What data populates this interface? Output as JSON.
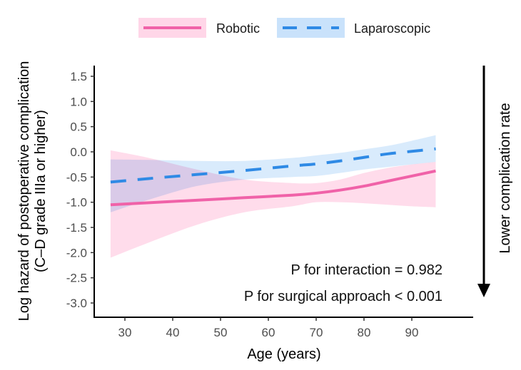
{
  "chart_data": {
    "type": "line",
    "title": "",
    "xlabel": "Age (years)",
    "ylabel_line1": "Log hazard of postoperative complication",
    "ylabel_line2": "(C–D grade IIIa or higher)",
    "xlim": [
      23.5,
      97
    ],
    "ylim": [
      -3.3,
      1.75
    ],
    "x_ticks": [
      30,
      40,
      50,
      60,
      70,
      80,
      90
    ],
    "x_tick_labels": [
      "30",
      "40",
      "50",
      "60",
      "70",
      "80",
      "90"
    ],
    "y_ticks": [
      1.5,
      1.0,
      0.5,
      0.0,
      -0.5,
      -1.0,
      -1.5,
      -2.0,
      -2.5,
      -3.0
    ],
    "y_tick_labels": [
      "1.5",
      "1.0",
      "0.5",
      "0.0",
      "-0.5",
      "-1.0",
      "-1.5",
      "-2.0",
      "-2.5",
      "-3.0"
    ],
    "grid": false,
    "legend_position": "top",
    "series": [
      {
        "name": "Robotic",
        "color": "#f062a8",
        "band_color": "#ffd6e8",
        "linestyle": "solid",
        "x": [
          27,
          35,
          45,
          55,
          65,
          70,
          75,
          80,
          85,
          90,
          95
        ],
        "y": [
          -1.05,
          -1.01,
          -0.96,
          -0.91,
          -0.86,
          -0.82,
          -0.76,
          -0.68,
          -0.58,
          -0.48,
          -0.38
        ],
        "lower": [
          -2.1,
          -1.8,
          -1.45,
          -1.2,
          -1.08,
          -1.0,
          -1.0,
          -1.02,
          -1.05,
          -1.08,
          -1.1
        ],
        "upper": [
          0.03,
          -0.12,
          -0.35,
          -0.55,
          -0.62,
          -0.62,
          -0.55,
          -0.42,
          -0.32,
          -0.25,
          -0.2
        ]
      },
      {
        "name": "Laparoscopic",
        "color": "#2f8ae5",
        "band_color": "#c9e2fb",
        "linestyle": "dashed",
        "x": [
          27,
          35,
          45,
          55,
          65,
          70,
          75,
          80,
          85,
          90,
          95
        ],
        "y": [
          -0.6,
          -0.53,
          -0.45,
          -0.37,
          -0.28,
          -0.24,
          -0.18,
          -0.11,
          -0.04,
          0.01,
          0.06
        ],
        "lower": [
          -1.2,
          -0.95,
          -0.68,
          -0.55,
          -0.5,
          -0.48,
          -0.42,
          -0.35,
          -0.3,
          -0.25,
          -0.2
        ],
        "upper": [
          -0.15,
          -0.16,
          -0.18,
          -0.18,
          -0.12,
          -0.07,
          -0.02,
          0.05,
          0.12,
          0.22,
          0.33
        ]
      }
    ],
    "annotations": [
      "P for interaction = 0.982",
      "P for surgical approach < 0.001"
    ],
    "side_arrow_label": "Lower complication rate"
  }
}
